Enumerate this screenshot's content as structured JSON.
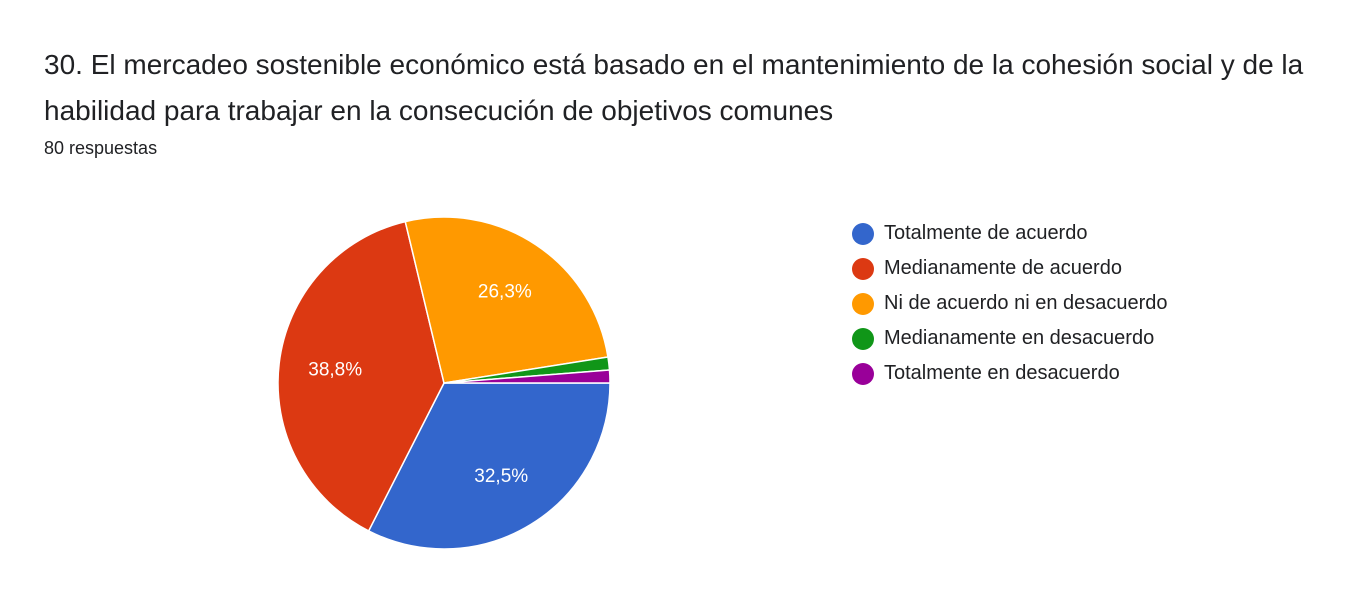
{
  "question": {
    "title": "30. El mercadeo sostenible económico está basado en el mantenimiento de la cohesión social y de la habilidad para trabajar en la consecución de objetivos comunes",
    "responses": "80 respuestas"
  },
  "chart_data": {
    "type": "pie",
    "legend_position": "right",
    "slices": [
      {
        "name": "Totalmente de acuerdo",
        "count": 26,
        "percent": 32.5,
        "label": "32,5%",
        "color": "#3366cc"
      },
      {
        "name": "Medianamente de acuerdo",
        "count": 31,
        "percent": 38.8,
        "label": "38,8%",
        "color": "#dc3912"
      },
      {
        "name": "Ni de acuerdo ni en desacuerdo",
        "count": 21,
        "percent": 26.3,
        "label": "26,3%",
        "color": "#ff9900"
      },
      {
        "name": "Medianamente en desacuerdo",
        "count": 1,
        "percent": 1.3,
        "label": "",
        "color": "#109618"
      },
      {
        "name": "Totalmente en desacuerdo",
        "count": 1,
        "percent": 1.3,
        "label": "",
        "color": "#990099"
      }
    ]
  }
}
